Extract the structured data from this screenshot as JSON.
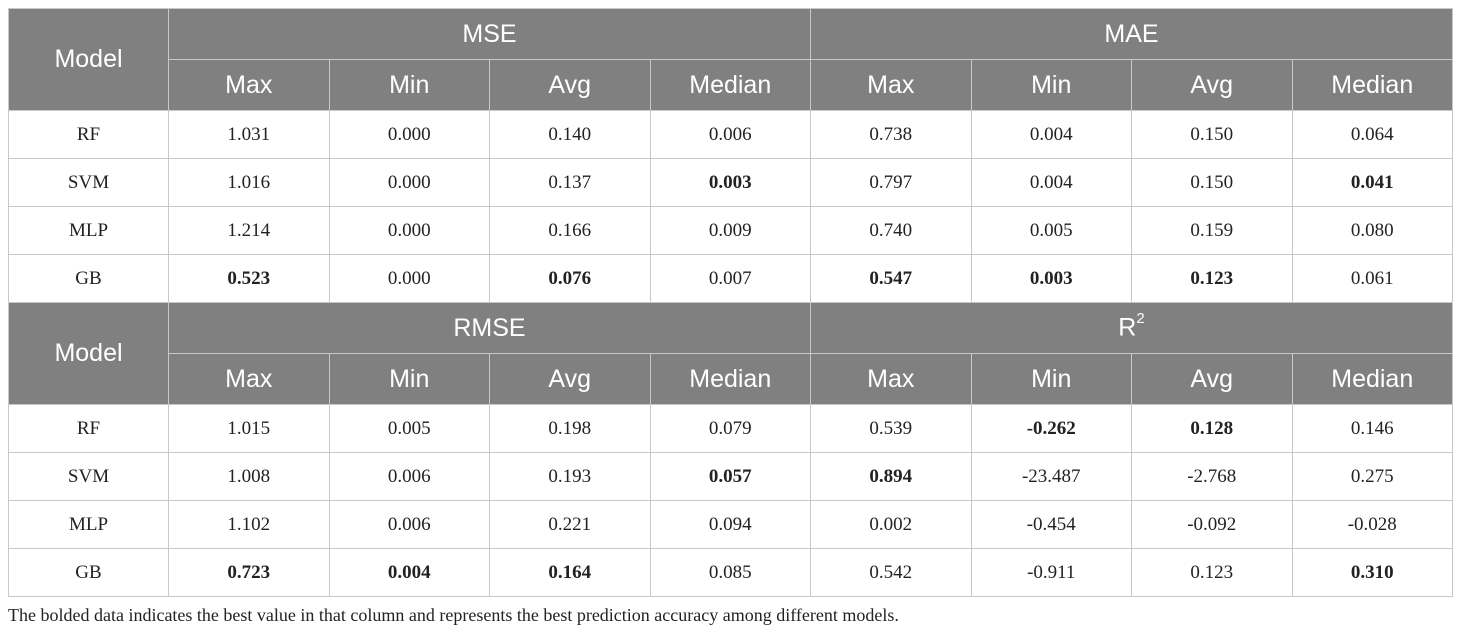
{
  "sections": [
    {
      "model_label": "Model",
      "groups": [
        "MSE",
        "MAE"
      ],
      "subheaders": [
        "Max",
        "Min",
        "Avg",
        "Median",
        "Max",
        "Min",
        "Avg",
        "Median"
      ],
      "rows": [
        {
          "model": "RF",
          "values": [
            "1.031",
            "0.000",
            "0.140",
            "0.006",
            "0.738",
            "0.004",
            "0.150",
            "0.064"
          ]
        },
        {
          "model": "SVM",
          "values": [
            "1.016",
            "0.000",
            "0.137",
            "0.003",
            "0.797",
            "0.004",
            "0.150",
            "0.041"
          ]
        },
        {
          "model": "MLP",
          "values": [
            "1.214",
            "0.000",
            "0.166",
            "0.009",
            "0.740",
            "0.005",
            "0.159",
            "0.080"
          ]
        },
        {
          "model": "GB",
          "values": [
            "0.523",
            "0.000",
            "0.076",
            "0.007",
            "0.547",
            "0.003",
            "0.123",
            "0.061"
          ]
        }
      ]
    },
    {
      "model_label": "Model",
      "groups": [
        "RMSE",
        "R"
      ],
      "group2_superscript": "2",
      "subheaders": [
        "Max",
        "Min",
        "Avg",
        "Median",
        "Max",
        "Min",
        "Avg",
        "Median"
      ],
      "rows": [
        {
          "model": "RF",
          "values": [
            "1.015",
            "0.005",
            "0.198",
            "0.079",
            "0.539",
            "-0.262",
            "0.128",
            "0.146"
          ]
        },
        {
          "model": "SVM",
          "values": [
            "1.008",
            "0.006",
            "0.193",
            "0.057",
            "0.894",
            "-23.487",
            "-2.768",
            "0.275"
          ]
        },
        {
          "model": "MLP",
          "values": [
            "1.102",
            "0.006",
            "0.221",
            "0.094",
            "0.002",
            "-0.454",
            "-0.092",
            "-0.028"
          ]
        },
        {
          "model": "GB",
          "values": [
            "0.723",
            "0.004",
            "0.164",
            "0.085",
            "0.542",
            "-0.911",
            "0.123",
            "0.310"
          ]
        }
      ]
    }
  ],
  "footnote": "The bolded data indicates the best value in that column and represents the best prediction accuracy among different models.",
  "colors": {
    "header_bg": "#7f807f",
    "header_text": "#ffffff",
    "border": "#c8c8c8"
  }
}
